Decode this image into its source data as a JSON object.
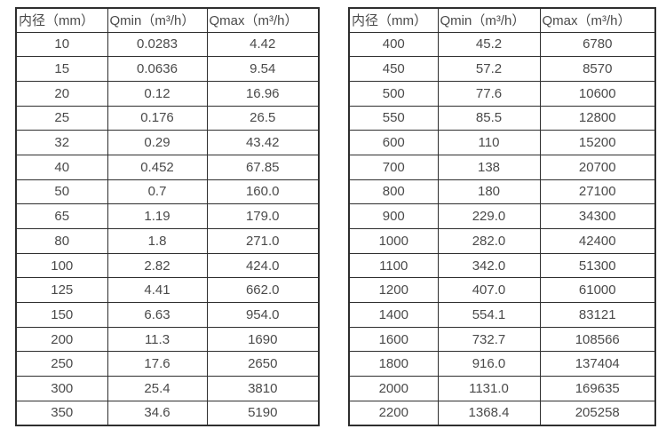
{
  "colors": {
    "border": "#2e2e2e",
    "text": "#4a4a4a",
    "background": "#ffffff"
  },
  "tables": [
    {
      "name": "flow-rate-table-small-diameters",
      "headers": [
        "内径（mm）",
        "Qmin（m³/h）",
        "Qmax（m³/h）"
      ],
      "rows": [
        [
          "10",
          "0.0283",
          "4.42"
        ],
        [
          "15",
          "0.0636",
          "9.54"
        ],
        [
          "20",
          "0.12",
          "16.96"
        ],
        [
          "25",
          "0.176",
          "26.5"
        ],
        [
          "32",
          "0.29",
          "43.42"
        ],
        [
          "40",
          "0.452",
          "67.85"
        ],
        [
          "50",
          "0.7",
          "160.0"
        ],
        [
          "65",
          "1.19",
          "179.0"
        ],
        [
          "80",
          "1.8",
          "271.0"
        ],
        [
          "100",
          "2.82",
          "424.0"
        ],
        [
          "125",
          "4.41",
          "662.0"
        ],
        [
          "150",
          "6.63",
          "954.0"
        ],
        [
          "200",
          "11.3",
          "1690"
        ],
        [
          "250",
          "17.6",
          "2650"
        ],
        [
          "300",
          "25.4",
          "3810"
        ],
        [
          "350",
          "34.6",
          "5190"
        ]
      ]
    },
    {
      "name": "flow-rate-table-large-diameters",
      "headers": [
        "内径（mm）",
        "Qmin（m³/h）",
        "Qmax（m³/h）"
      ],
      "rows": [
        [
          "400",
          "45.2",
          "6780"
        ],
        [
          "450",
          "57.2",
          "8570"
        ],
        [
          "500",
          "77.6",
          "10600"
        ],
        [
          "550",
          "85.5",
          "12800"
        ],
        [
          "600",
          "110",
          "15200"
        ],
        [
          "700",
          "138",
          "20700"
        ],
        [
          "800",
          "180",
          "27100"
        ],
        [
          "900",
          "229.0",
          "34300"
        ],
        [
          "1000",
          "282.0",
          "42400"
        ],
        [
          "1100",
          "342.0",
          "51300"
        ],
        [
          "1200",
          "407.0",
          "61000"
        ],
        [
          "1400",
          "554.1",
          "83121"
        ],
        [
          "1600",
          "732.7",
          "108566"
        ],
        [
          "1800",
          "916.0",
          "137404"
        ],
        [
          "2000",
          "1131.0",
          "169635"
        ],
        [
          "2200",
          "1368.4",
          "205258"
        ]
      ]
    }
  ]
}
